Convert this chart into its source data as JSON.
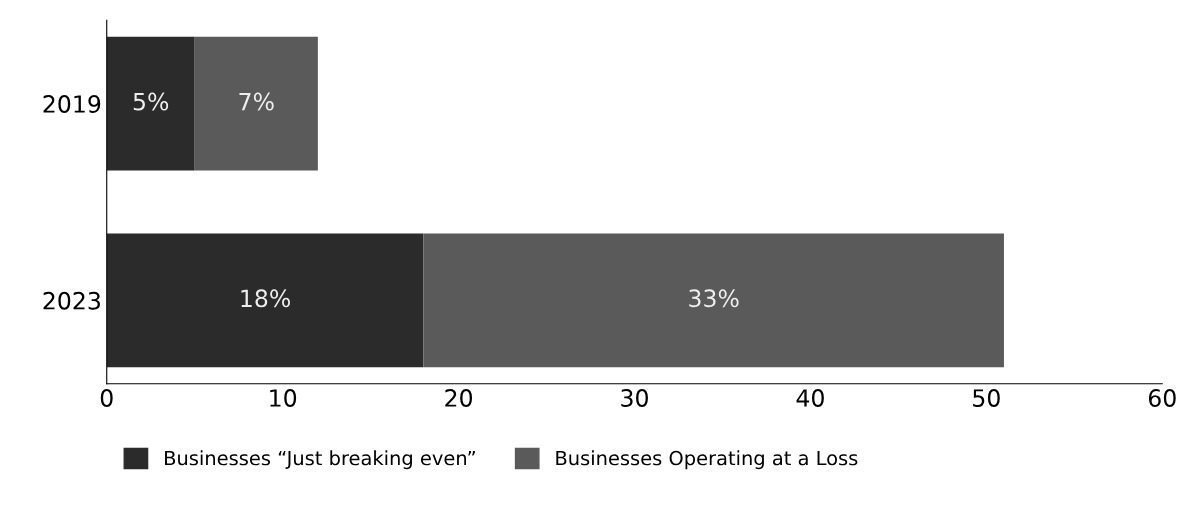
{
  "chart_data": {
    "type": "bar",
    "orientation": "horizontal",
    "stacked": true,
    "categories": [
      "2019",
      "2023"
    ],
    "series": [
      {
        "name": "Businesses “Just breaking even”",
        "color": "#2b2b2b",
        "values": [
          5,
          18
        ],
        "value_labels": [
          "5%",
          "18%"
        ]
      },
      {
        "name": "Businesses Operating at a Loss",
        "color": "#5a5a5a",
        "values": [
          7,
          33
        ],
        "value_labels": [
          "7%",
          "33%"
        ]
      }
    ],
    "xlim": [
      0,
      60
    ],
    "xticks": [
      0,
      10,
      20,
      30,
      40,
      50,
      60
    ],
    "grid": false,
    "legend": "bottom"
  }
}
